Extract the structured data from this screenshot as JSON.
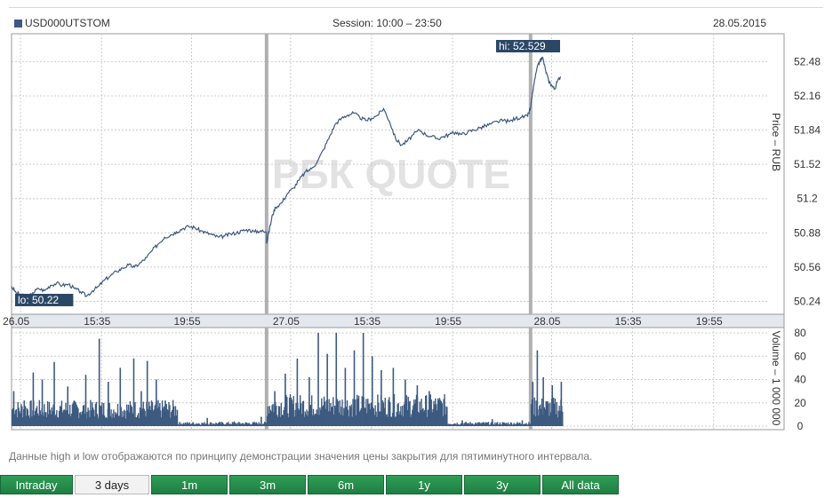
{
  "header": {
    "ticker": "USD000UTSTOM",
    "session": "Session: 10:00 – 23:50",
    "date": "28.05.2015"
  },
  "chart_data": {
    "type": "line",
    "price": {
      "ylabel": "Price – RUB",
      "yticks": [
        "52.48",
        "52.16",
        "51.84",
        "51.52",
        "51.2",
        "50.88",
        "50.56",
        "50.24"
      ],
      "ylim": [
        50.12,
        52.74
      ],
      "hi_label": "hi: 52.529",
      "lo_label": "lo: 50.22",
      "points": [
        [
          0,
          50.38
        ],
        [
          0.03,
          50.32
        ],
        [
          0.07,
          50.3
        ],
        [
          0.1,
          50.26
        ],
        [
          0.14,
          50.32
        ],
        [
          0.18,
          50.36
        ],
        [
          0.22,
          50.34
        ],
        [
          0.26,
          50.39
        ],
        [
          0.3,
          50.41
        ],
        [
          0.34,
          50.39
        ],
        [
          0.38,
          50.4
        ],
        [
          0.42,
          50.36
        ],
        [
          0.46,
          50.33
        ],
        [
          0.5,
          50.29
        ],
        [
          0.54,
          50.34
        ],
        [
          0.58,
          50.38
        ],
        [
          0.62,
          50.44
        ],
        [
          0.66,
          50.48
        ],
        [
          0.7,
          50.52
        ],
        [
          0.74,
          50.55
        ],
        [
          0.78,
          50.58
        ],
        [
          0.82,
          50.56
        ],
        [
          0.86,
          50.6
        ],
        [
          0.9,
          50.65
        ],
        [
          0.94,
          50.72
        ],
        [
          0.98,
          50.78
        ],
        [
          1.02,
          50.84
        ],
        [
          1.06,
          50.86
        ],
        [
          1.1,
          50.89
        ],
        [
          1.14,
          50.92
        ],
        [
          1.18,
          50.94
        ],
        [
          1.22,
          50.93
        ],
        [
          1.26,
          50.9
        ],
        [
          1.3,
          50.88
        ],
        [
          1.34,
          50.86
        ],
        [
          1.38,
          50.84
        ],
        [
          1.42,
          50.85
        ],
        [
          1.46,
          50.87
        ],
        [
          1.5,
          50.88
        ],
        [
          1.54,
          50.9
        ],
        [
          1.58,
          50.91
        ],
        [
          1.62,
          50.89
        ],
        [
          1.66,
          50.9
        ],
        [
          1.7,
          50.88
        ],
        [
          1.7,
          50.78
        ],
        [
          1.72,
          50.92
        ],
        [
          1.74,
          51.05
        ],
        [
          1.76,
          51.12
        ],
        [
          1.8,
          51.16
        ],
        [
          1.84,
          51.25
        ],
        [
          1.88,
          51.3
        ],
        [
          1.92,
          51.38
        ],
        [
          1.96,
          51.45
        ],
        [
          2.0,
          51.48
        ],
        [
          2.04,
          51.55
        ],
        [
          2.08,
          51.66
        ],
        [
          2.12,
          51.78
        ],
        [
          2.16,
          51.9
        ],
        [
          2.2,
          51.95
        ],
        [
          2.24,
          51.98
        ],
        [
          2.28,
          52.0
        ],
        [
          2.32,
          51.96
        ],
        [
          2.36,
          51.93
        ],
        [
          2.4,
          51.95
        ],
        [
          2.44,
          51.98
        ],
        [
          2.48,
          52.04
        ],
        [
          2.52,
          51.92
        ],
        [
          2.56,
          51.76
        ],
        [
          2.6,
          51.7
        ],
        [
          2.64,
          51.74
        ],
        [
          2.68,
          51.8
        ],
        [
          2.72,
          51.84
        ],
        [
          2.76,
          51.8
        ],
        [
          2.8,
          51.78
        ],
        [
          2.84,
          51.76
        ],
        [
          2.88,
          51.78
        ],
        [
          2.92,
          51.8
        ],
        [
          2.96,
          51.82
        ],
        [
          3.0,
          51.8
        ],
        [
          3.04,
          51.82
        ],
        [
          3.08,
          51.84
        ],
        [
          3.12,
          51.86
        ],
        [
          3.16,
          51.88
        ],
        [
          3.2,
          51.9
        ],
        [
          3.24,
          51.92
        ],
        [
          3.28,
          51.93
        ],
        [
          3.32,
          51.92
        ],
        [
          3.36,
          51.95
        ],
        [
          3.4,
          51.96
        ],
        [
          3.44,
          51.97
        ],
        [
          3.46,
          52.05
        ],
        [
          3.48,
          52.25
        ],
        [
          3.5,
          52.4
        ],
        [
          3.52,
          52.48
        ],
        [
          3.54,
          52.52
        ],
        [
          3.56,
          52.4
        ],
        [
          3.58,
          52.3
        ],
        [
          3.6,
          52.26
        ],
        [
          3.62,
          52.22
        ],
        [
          3.64,
          52.3
        ],
        [
          3.66,
          52.34
        ]
      ]
    },
    "x_axis": {
      "ticks": [
        {
          "label": "26.05",
          "t": 0.06
        },
        {
          "label": "15:35",
          "t": 0.6
        },
        {
          "label": "19:55",
          "t": 1.2
        },
        {
          "label": "27.05",
          "t": 1.86
        },
        {
          "label": "15:35",
          "t": 2.4
        },
        {
          "label": "19:55",
          "t": 2.94
        },
        {
          "label": "28.05",
          "t": 3.6
        },
        {
          "label": "15:35",
          "t": 4.14
        },
        {
          "label": "19:55",
          "t": 4.68
        }
      ],
      "day_breaks": [
        1.7,
        3.46
      ],
      "range": [
        0,
        5.15
      ]
    },
    "volume": {
      "ylabel": "Volume – 1 000 000",
      "yticks": [
        "80",
        "60",
        "40",
        "20",
        "0"
      ],
      "ylim": [
        0,
        80
      ],
      "spikes": [
        [
          0.01,
          30
        ],
        [
          0.08,
          22
        ],
        [
          0.14,
          46
        ],
        [
          0.2,
          40
        ],
        [
          0.28,
          55
        ],
        [
          0.37,
          34
        ],
        [
          0.49,
          44
        ],
        [
          0.58,
          75
        ],
        [
          0.64,
          38
        ],
        [
          0.72,
          50
        ],
        [
          0.81,
          58
        ],
        [
          0.86,
          30
        ],
        [
          0.9,
          56
        ],
        [
          0.96,
          40
        ],
        [
          1.02,
          22
        ],
        [
          1.1,
          14
        ],
        [
          1.3,
          7
        ],
        [
          1.48,
          4
        ],
        [
          1.66,
          8
        ],
        [
          1.75,
          30
        ],
        [
          1.82,
          45
        ],
        [
          1.9,
          58
        ],
        [
          1.98,
          42
        ],
        [
          2.04,
          80
        ],
        [
          2.1,
          62
        ],
        [
          2.16,
          80
        ],
        [
          2.22,
          50
        ],
        [
          2.28,
          65
        ],
        [
          2.34,
          80
        ],
        [
          2.4,
          60
        ],
        [
          2.46,
          48
        ],
        [
          2.54,
          50
        ],
        [
          2.62,
          40
        ],
        [
          2.7,
          35
        ],
        [
          2.78,
          30
        ],
        [
          2.86,
          20
        ],
        [
          3.0,
          5
        ],
        [
          3.2,
          6
        ],
        [
          3.4,
          5
        ],
        [
          3.47,
          38
        ],
        [
          3.5,
          65
        ],
        [
          3.54,
          42
        ],
        [
          3.6,
          35
        ],
        [
          3.66,
          38
        ]
      ],
      "sessions": [
        {
          "from": 0.0,
          "to": 1.1,
          "base": 18
        },
        {
          "from": 1.1,
          "to": 1.7,
          "base": 3
        },
        {
          "from": 1.7,
          "to": 2.9,
          "base": 22
        },
        {
          "from": 2.9,
          "to": 3.46,
          "base": 3
        },
        {
          "from": 3.46,
          "to": 3.67,
          "base": 20
        }
      ]
    },
    "watermark": "РБК QUOTE"
  },
  "note": "Данные high и low отображаются по принципу демонстрации значения цены закрытия для пятиминутного интервала.",
  "periods": [
    {
      "label": "Intraday",
      "active": false
    },
    {
      "label": "3 days",
      "active": true
    },
    {
      "label": "1m",
      "active": false
    },
    {
      "label": "3m",
      "active": false
    },
    {
      "label": "6m",
      "active": false
    },
    {
      "label": "1y",
      "active": false
    },
    {
      "label": "3y",
      "active": false
    },
    {
      "label": "All data",
      "active": false
    }
  ],
  "colors": {
    "line": "#3d5a80",
    "volume": "#3d5a80",
    "day_break": "#b0b0b0",
    "button": "#23864a"
  }
}
